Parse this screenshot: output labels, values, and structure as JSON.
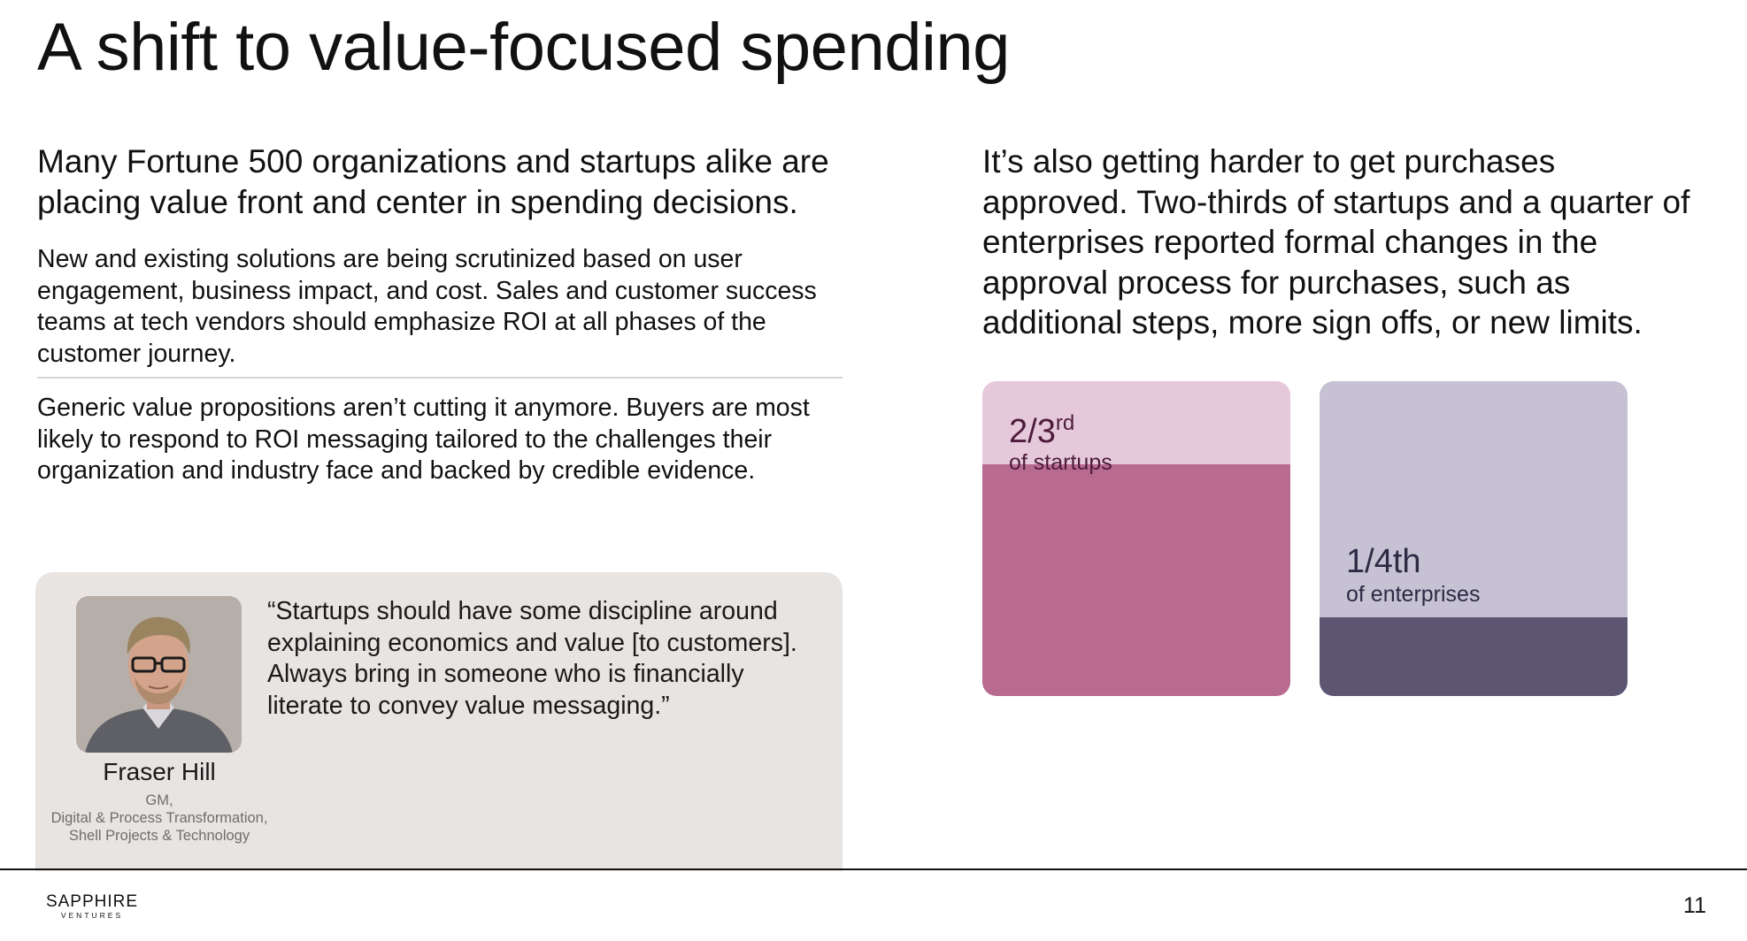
{
  "slide": {
    "title": "A shift to value-focused spending",
    "page_number": "11"
  },
  "left": {
    "lead": "Many Fortune 500 organizations and startups alike are placing value front and center in spending decisions.",
    "paragraph1": "New and existing solutions are being scrutinized based on user engagement, business impact, and cost. Sales and customer success teams at tech vendors should emphasize ROI at all phases of the customer journey.",
    "paragraph2": "Generic value propositions aren’t cutting it anymore. Buyers are most likely to respond to ROI messaging tailored to the challenges their organization and industry  face and backed by credible evidence."
  },
  "quote": {
    "text": "“Startups should have some discipline around explaining economics and value [to customers]. Always bring in someone who is financially literate to convey value messaging.”",
    "name": "Fraser Hill",
    "role_line1": "GM,",
    "role_line2": "Digital & Process Transformation,",
    "role_line3": "Shell Projects & Technology"
  },
  "right": {
    "lead": "It’s also getting harder to get purchases approved. Two-thirds of startups and a quarter of enterprises reported formal changes in the approval process for purchases, such as additional steps, more sign offs, or new limits."
  },
  "stats": {
    "startups": {
      "value_main": "2/3",
      "value_suffix": "rd",
      "label": "of startups",
      "fraction": 0.667,
      "color_light": "#e6c8db",
      "color_fill": "#b96a90"
    },
    "enterprises": {
      "value": "1/4th",
      "label": "of enterprises",
      "fraction": 0.25,
      "color_light": "#c6c2d4",
      "color_fill": "#5d5673"
    }
  },
  "footer": {
    "logo_main": "SAPPHIRE",
    "logo_sub": "VENTURES"
  }
}
